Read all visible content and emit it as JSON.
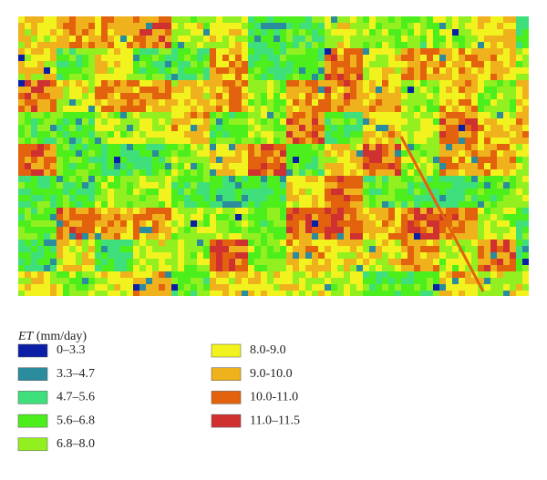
{
  "legend": {
    "title_var": "ET",
    "title_unit": "(mm/day)",
    "items": [
      {
        "label": "0–3.3",
        "color": "#0b1fa6"
      },
      {
        "label": "3.3–4.7",
        "color": "#2b8c9e"
      },
      {
        "label": "4.7–5.6",
        "color": "#3fe07c"
      },
      {
        "label": "5.6–6.8",
        "color": "#4cef1c"
      },
      {
        "label": "6.8–8.0",
        "color": "#93f020"
      },
      {
        "label": "8.0-9.0",
        "color": "#f2f21e"
      },
      {
        "label": "9.0-10.0",
        "color": "#f0b21c"
      },
      {
        "label": "10.0-11.0",
        "color": "#e2620e"
      },
      {
        "label": "11.0–11.5",
        "color": "#cf3030"
      }
    ]
  }
}
